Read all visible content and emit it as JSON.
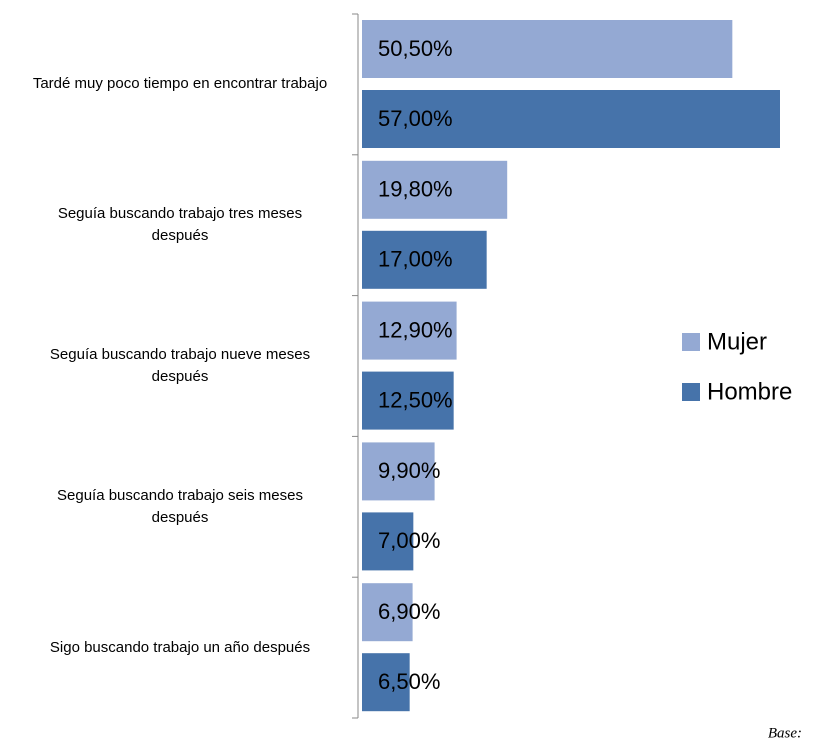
{
  "chart_data": {
    "type": "bar",
    "orientation": "horizontal",
    "categories": [
      "Tardé muy poco tiempo en encontrar trabajo",
      "Seguía buscando trabajo tres meses después",
      "Seguía buscando trabajo nueve meses después",
      "Seguía buscando trabajo seis meses después",
      "Sigo buscando trabajo un año después"
    ],
    "series": [
      {
        "name": "Mujer",
        "color": "#94a9d3",
        "values": [
          50.5,
          19.8,
          12.9,
          9.9,
          6.9
        ],
        "value_labels": [
          "50,50%",
          "19,80%",
          "12,90%",
          "9,90%",
          "6,90%"
        ]
      },
      {
        "name": "Hombre",
        "color": "#4673aa",
        "values": [
          57,
          17,
          12.5,
          7,
          6.5
        ],
        "value_labels": [
          "57,00%",
          "17,00%",
          "12,50%",
          "7,00%",
          "6,50%"
        ]
      }
    ],
    "legend": "right",
    "footnote": "Base:"
  }
}
